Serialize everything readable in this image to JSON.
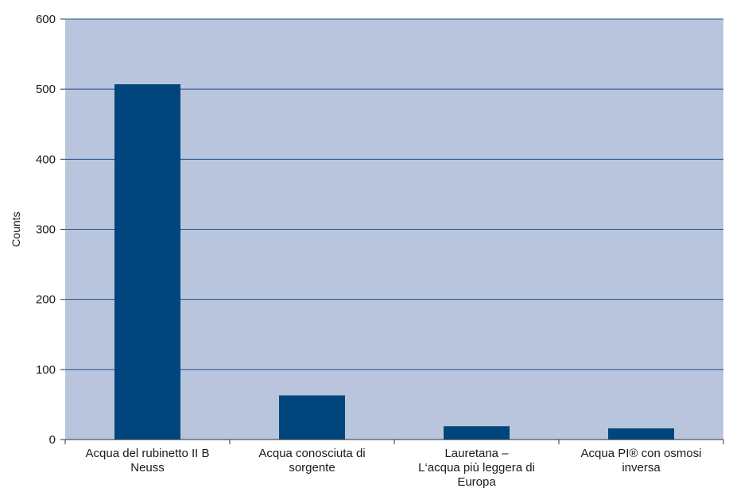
{
  "chart_data": {
    "type": "bar",
    "categories": [
      [
        "Acqua del rubinetto II B",
        "Neuss"
      ],
      [
        "Acqua conosciuta di",
        "sorgente"
      ],
      [
        "Lauretana –",
        "L‘acqua più leggera di",
        "Europa"
      ],
      [
        "Acqua PI® con osmosi",
        "inversa"
      ]
    ],
    "values": [
      507,
      63,
      19,
      16
    ],
    "ylabel": "Counts",
    "xlabel": "",
    "ylim": [
      0,
      600
    ],
    "yticks": [
      0,
      100,
      200,
      300,
      400,
      500,
      600
    ],
    "grid": true,
    "colors": {
      "plot_background": "#b9c5dc",
      "bar": "#00467c",
      "gridline": "#1f4e8c",
      "axis": "#333333"
    }
  }
}
